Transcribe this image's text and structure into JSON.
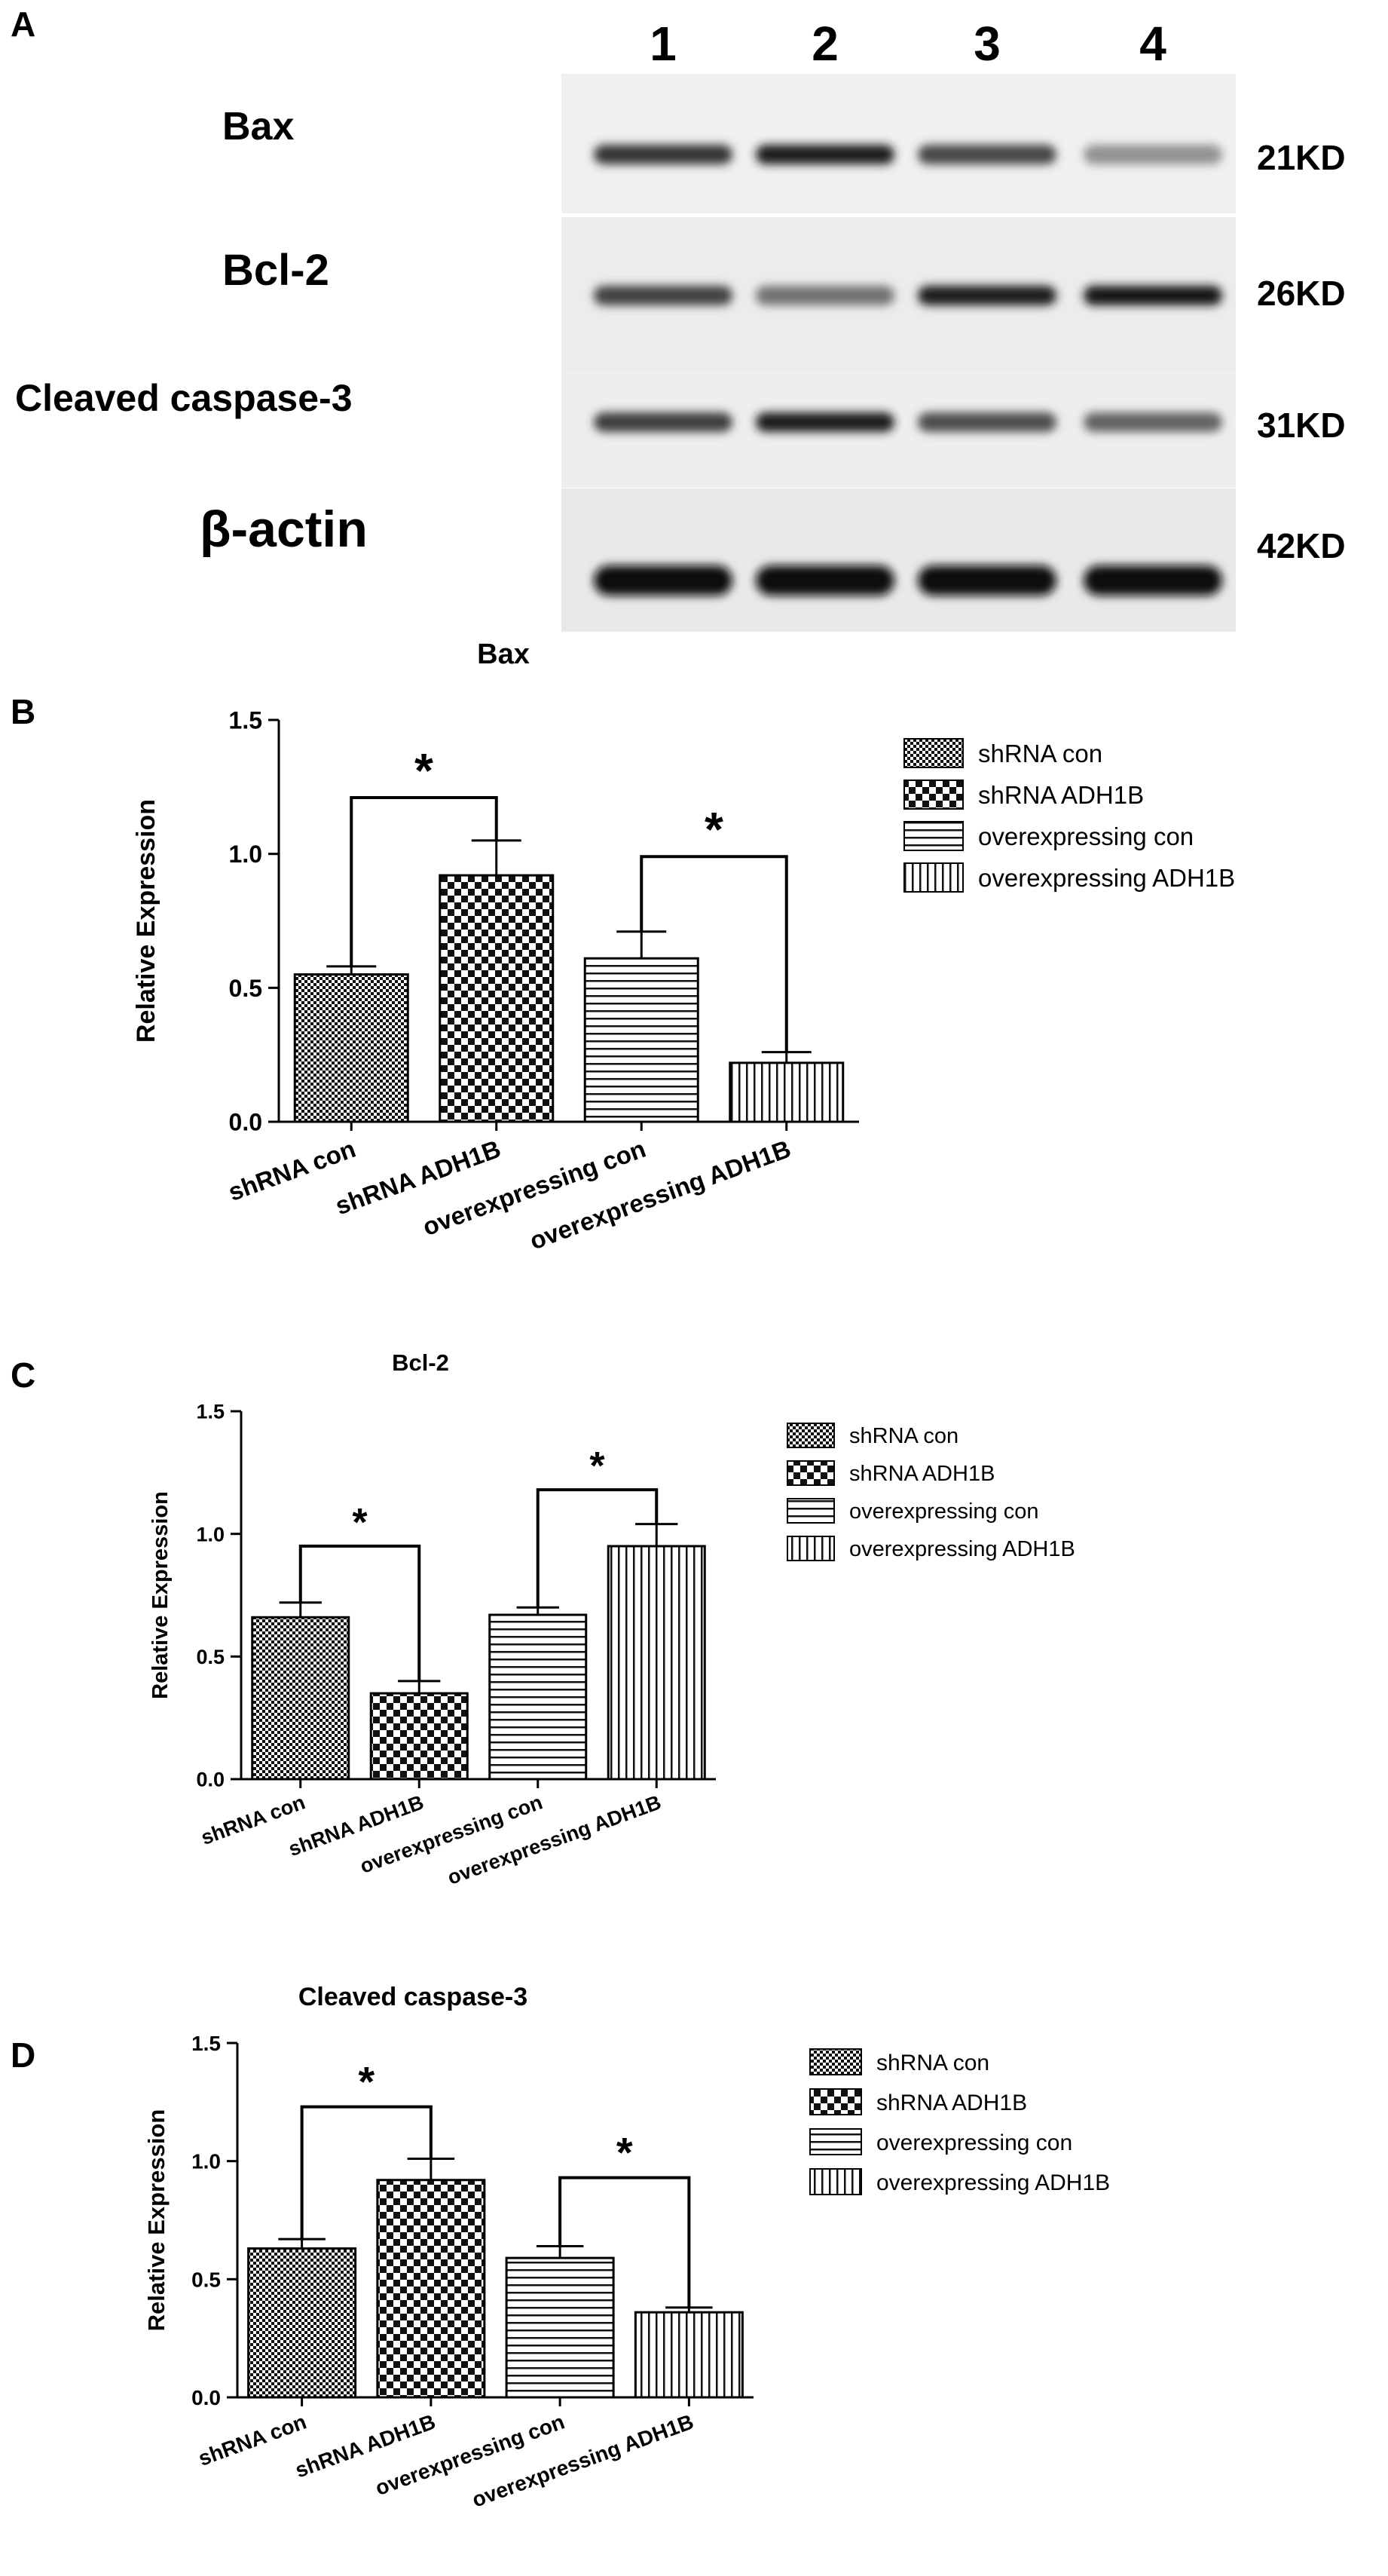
{
  "panel_a": {
    "letter": "A",
    "lanes": [
      "1",
      "2",
      "3",
      "4"
    ],
    "rows": [
      {
        "protein": "Bax",
        "kd": "21KD",
        "intensity": [
          0.78,
          0.92,
          0.7,
          0.32
        ]
      },
      {
        "protein": "Bcl-2",
        "kd": "26KD",
        "intensity": [
          0.72,
          0.48,
          0.9,
          0.95
        ]
      },
      {
        "protein": "Cleaved caspase-3",
        "kd": "31KD",
        "intensity": [
          0.75,
          0.9,
          0.66,
          0.55
        ]
      },
      {
        "protein": "β-actin",
        "kd": "42KD",
        "intensity": [
          1.0,
          1.0,
          1.0,
          1.0
        ]
      }
    ]
  },
  "chart_data": [
    {
      "panel": "B",
      "type": "bar",
      "title": "Bax",
      "ylabel": "Relative Expression",
      "ylim": [
        0,
        1.5
      ],
      "yticks": [
        "0.0",
        "0.5",
        "1.0",
        "1.5"
      ],
      "categories": [
        "shRNA con",
        "shRNA ADH1B",
        "overexpressing con",
        "overexpressing ADH1B"
      ],
      "values": [
        0.55,
        0.92,
        0.61,
        0.22
      ],
      "errors": [
        0.03,
        0.13,
        0.1,
        0.04
      ],
      "legend": [
        "shRNA con",
        "shRNA ADH1B",
        "overexpressing con",
        "overexpressing ADH1B"
      ],
      "significance": [
        {
          "pair": [
            0,
            1
          ],
          "label": "*",
          "y": 1.21
        },
        {
          "pair": [
            2,
            3
          ],
          "label": "*",
          "y": 0.99
        }
      ]
    },
    {
      "panel": "C",
      "type": "bar",
      "title": "Bcl-2",
      "ylabel": "Relative Expression",
      "ylim": [
        0,
        1.5
      ],
      "yticks": [
        "0.0",
        "0.5",
        "1.0",
        "1.5"
      ],
      "categories": [
        "shRNA con",
        "shRNA ADH1B",
        "overexpressing con",
        "overexpressing ADH1B"
      ],
      "values": [
        0.66,
        0.35,
        0.67,
        0.95
      ],
      "errors": [
        0.06,
        0.05,
        0.03,
        0.09
      ],
      "legend": [
        "shRNA con",
        "shRNA ADH1B",
        "overexpressing con",
        "overexpressing ADH1B"
      ],
      "significance": [
        {
          "pair": [
            0,
            1
          ],
          "label": "*",
          "y": 0.95
        },
        {
          "pair": [
            2,
            3
          ],
          "label": "*",
          "y": 1.18
        }
      ]
    },
    {
      "panel": "D",
      "type": "bar",
      "title": "Cleaved caspase-3",
      "ylabel": "Relative Expression",
      "ylim": [
        0,
        1.5
      ],
      "yticks": [
        "0.0",
        "0.5",
        "1.0",
        "1.5"
      ],
      "categories": [
        "shRNA con",
        "shRNA ADH1B",
        "overexpressing con",
        "overexpressing ADH1B"
      ],
      "values": [
        0.63,
        0.92,
        0.59,
        0.36
      ],
      "errors": [
        0.04,
        0.09,
        0.05,
        0.02
      ],
      "legend": [
        "shRNA con",
        "shRNA ADH1B",
        "overexpressing con",
        "overexpressing ADH1B"
      ],
      "significance": [
        {
          "pair": [
            0,
            1
          ],
          "label": "*",
          "y": 1.23
        },
        {
          "pair": [
            2,
            3
          ],
          "label": "*",
          "y": 0.93
        }
      ]
    }
  ]
}
